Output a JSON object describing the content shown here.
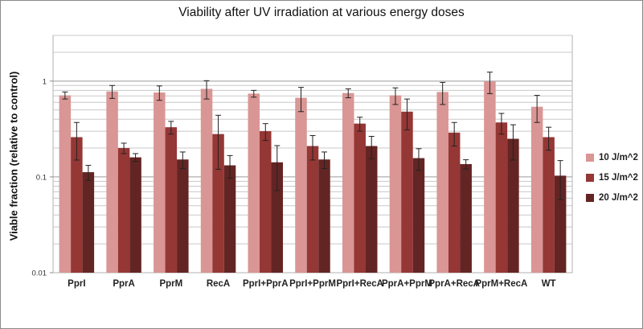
{
  "chart_data": {
    "type": "bar",
    "title": "Viability after UV irradiation at various energy doses",
    "xlabel": "",
    "ylabel": "Viable fraction (relative to control)",
    "yscale": "log",
    "ylim": [
      0.01,
      3
    ],
    "yticks": [
      {
        "value": 0.01,
        "label": "0.01"
      },
      {
        "value": 0.1,
        "label": "0.1"
      },
      {
        "value": 1,
        "label": "1"
      }
    ],
    "grid": "horizontal",
    "legend_position": "right",
    "categories": [
      "PprI",
      "PprA",
      "PprM",
      "RecA",
      "PprI+PprA",
      "PprI+PprM",
      "PprI+RecA",
      "PprA+PprM",
      "PprA+RecA",
      "PprM+RecA",
      "WT"
    ],
    "series": [
      {
        "name": "10 J/m^2",
        "color": "#d99694",
        "values": [
          0.71,
          0.78,
          0.76,
          0.83,
          0.74,
          0.67,
          0.75,
          0.71,
          0.77,
          0.99,
          0.54
        ],
        "errors": [
          0.06,
          0.12,
          0.13,
          0.18,
          0.06,
          0.19,
          0.08,
          0.14,
          0.2,
          0.25,
          0.17
        ]
      },
      {
        "name": "15 J/m^2",
        "color": "#953735",
        "values": [
          0.26,
          0.2,
          0.33,
          0.28,
          0.3,
          0.21,
          0.36,
          0.48,
          0.29,
          0.37,
          0.26
        ],
        "errors": [
          0.11,
          0.025,
          0.05,
          0.16,
          0.06,
          0.06,
          0.06,
          0.17,
          0.08,
          0.09,
          0.07
        ]
      },
      {
        "name": "20 J/m^2",
        "color": "#632523",
        "values": [
          0.112,
          0.16,
          0.152,
          0.132,
          0.142,
          0.152,
          0.21,
          0.157,
          0.136,
          0.25,
          0.103
        ],
        "errors": [
          0.02,
          0.015,
          0.03,
          0.035,
          0.07,
          0.03,
          0.055,
          0.04,
          0.015,
          0.1,
          0.045
        ]
      }
    ]
  }
}
